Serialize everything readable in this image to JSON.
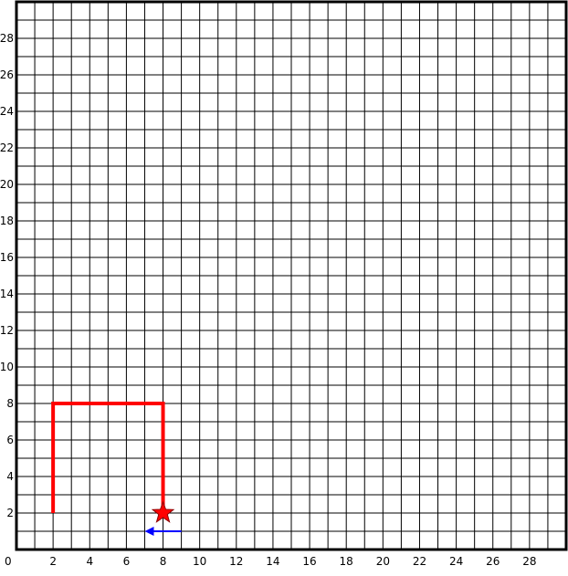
{
  "grid": {
    "cols": 30,
    "rows": 30,
    "line_color": "#000000",
    "frame_color": "#000000"
  },
  "axes": {
    "origin_label": "0",
    "x_tick_labels": [
      "2",
      "4",
      "6",
      "8",
      "10",
      "12",
      "14",
      "16",
      "18",
      "20",
      "22",
      "24",
      "26",
      "28"
    ],
    "y_tick_labels": [
      "2",
      "4",
      "6",
      "8",
      "10",
      "12",
      "14",
      "16",
      "18",
      "20",
      "22",
      "24",
      "26",
      "28"
    ]
  },
  "path": {
    "color": "#ff0000",
    "points": [
      [
        2,
        2
      ],
      [
        2,
        8
      ],
      [
        8,
        8
      ],
      [
        8,
        2
      ]
    ]
  },
  "star_marker": {
    "icon": "star-icon",
    "color": "#ff0000",
    "position": [
      8,
      2
    ]
  },
  "direction_arrow": {
    "icon": "arrow-left-icon",
    "color": "#0000ff",
    "from": [
      9,
      1
    ],
    "to": [
      7,
      1
    ]
  }
}
